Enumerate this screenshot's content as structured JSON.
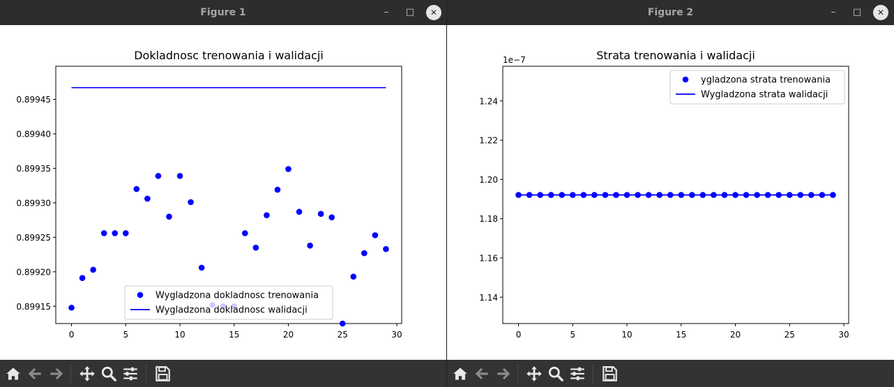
{
  "windows": [
    {
      "title": "Figure 1",
      "buttons": {
        "minimize": "–",
        "maximize": "□",
        "close": "✕"
      },
      "toolbar": [
        "home-icon",
        "back-icon",
        "forward-icon",
        "pan-icon",
        "zoom-icon",
        "configure-icon",
        "save-icon"
      ]
    },
    {
      "title": "Figure 2",
      "buttons": {
        "minimize": "–",
        "maximize": "□",
        "close": "✕"
      },
      "toolbar": [
        "home-icon",
        "back-icon",
        "forward-icon",
        "pan-icon",
        "zoom-icon",
        "configure-icon",
        "save-icon"
      ]
    }
  ],
  "colors": {
    "series": "#0000ff",
    "titlebar": "#2d2d2d",
    "toolbar": "#333333"
  },
  "chart_data": [
    {
      "type": "scatter",
      "title": "Dokladnosc trenowania i walidacji",
      "xlabel": "",
      "ylabel": "",
      "xlim": [
        -1.45,
        30.45
      ],
      "ylim": [
        0.899125,
        0.899498
      ],
      "xticks": [
        0,
        5,
        10,
        15,
        20,
        25,
        30
      ],
      "xtick_labels": [
        "0",
        "5",
        "10",
        "15",
        "20",
        "25",
        "30"
      ],
      "yticks": [
        0.89915,
        0.8992,
        0.89925,
        0.8993,
        0.89935,
        0.8994,
        0.89945
      ],
      "ytick_labels": [
        "0.89915",
        "0.89920",
        "0.89925",
        "0.89930",
        "0.89935",
        "0.89940",
        "0.89945"
      ],
      "legend": "lower center",
      "series": [
        {
          "name": "Wygladzona dokladnosc trenowania",
          "style": "points",
          "x": [
            0,
            1,
            2,
            3,
            4,
            5,
            6,
            7,
            8,
            9,
            10,
            11,
            12,
            13,
            14,
            15,
            16,
            17,
            18,
            19,
            20,
            21,
            22,
            23,
            24,
            25,
            26,
            27,
            28,
            29
          ],
          "y": [
            0.899148,
            0.899191,
            0.899203,
            0.899256,
            0.899256,
            0.899256,
            0.89932,
            0.899306,
            0.899339,
            0.89928,
            0.899339,
            0.899301,
            0.899206,
            0.899152,
            0.89915,
            0.89915,
            0.899256,
            0.899235,
            0.899282,
            0.899319,
            0.899349,
            0.899287,
            0.899238,
            0.899284,
            0.899279,
            0.899125,
            0.899193,
            0.899227,
            0.899253,
            0.899233
          ]
        },
        {
          "name": "Wygladzona dokladnosc walidacji",
          "style": "line",
          "x": [
            0,
            29
          ],
          "y": [
            0.899467,
            0.899467
          ]
        }
      ]
    },
    {
      "type": "line",
      "title": "Strata trenowania i walidacji",
      "xlabel": "",
      "ylabel": "",
      "offset_label": "1e−7",
      "xlim": [
        -1.45,
        30.45
      ],
      "ylim": [
        1.12659,
        1.25768
      ],
      "xticks": [
        0,
        5,
        10,
        15,
        20,
        25,
        30
      ],
      "xtick_labels": [
        "0",
        "5",
        "10",
        "15",
        "20",
        "25",
        "30"
      ],
      "yticks": [
        1.14,
        1.16,
        1.18,
        1.2,
        1.22,
        1.24
      ],
      "ytick_labels": [
        "1.14",
        "1.16",
        "1.18",
        "1.20",
        "1.22",
        "1.24"
      ],
      "legend": "upper right",
      "series": [
        {
          "name": "ygladzona strata trenowania",
          "style": "points",
          "x": [
            0,
            1,
            2,
            3,
            4,
            5,
            6,
            7,
            8,
            9,
            10,
            11,
            12,
            13,
            14,
            15,
            16,
            17,
            18,
            19,
            20,
            21,
            22,
            23,
            24,
            25,
            26,
            27,
            28,
            29
          ],
          "y": [
            1.1921,
            1.1921,
            1.1921,
            1.1921,
            1.1921,
            1.1921,
            1.1921,
            1.1921,
            1.1921,
            1.1921,
            1.1921,
            1.1921,
            1.1921,
            1.1921,
            1.1921,
            1.1921,
            1.1921,
            1.1921,
            1.1921,
            1.1921,
            1.1921,
            1.1921,
            1.1921,
            1.1921,
            1.1921,
            1.1921,
            1.1921,
            1.1921,
            1.1921,
            1.1921
          ]
        },
        {
          "name": "Wygladzona strata walidacji",
          "style": "line",
          "x": [
            0,
            29
          ],
          "y": [
            1.1921,
            1.1921
          ]
        }
      ]
    }
  ]
}
